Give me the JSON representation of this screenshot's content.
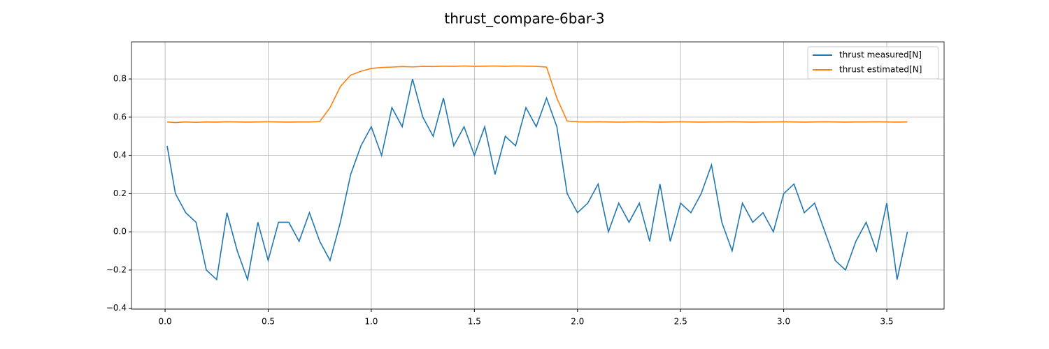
{
  "chart_data": {
    "type": "line",
    "title": "thrust_compare-6bar-3",
    "x": [
      0.01,
      0.05,
      0.1,
      0.15,
      0.2,
      0.25,
      0.3,
      0.35,
      0.4,
      0.45,
      0.5,
      0.55,
      0.6,
      0.65,
      0.7,
      0.75,
      0.8,
      0.85,
      0.9,
      0.95,
      1.0,
      1.05,
      1.1,
      1.15,
      1.2,
      1.25,
      1.3,
      1.35,
      1.4,
      1.45,
      1.5,
      1.55,
      1.6,
      1.65,
      1.7,
      1.75,
      1.8,
      1.85,
      1.9,
      1.95,
      2.0,
      2.05,
      2.1,
      2.15,
      2.2,
      2.25,
      2.3,
      2.35,
      2.4,
      2.45,
      2.5,
      2.55,
      2.6,
      2.65,
      2.7,
      2.75,
      2.8,
      2.85,
      2.9,
      2.95,
      3.0,
      3.05,
      3.1,
      3.15,
      3.2,
      3.25,
      3.3,
      3.35,
      3.4,
      3.45,
      3.5,
      3.55,
      3.6
    ],
    "series": [
      {
        "name": "thrust measured[N]",
        "color": "#1f77b4",
        "values": [
          0.45,
          0.2,
          0.1,
          0.05,
          -0.2,
          -0.25,
          0.1,
          -0.1,
          -0.25,
          0.05,
          -0.15,
          0.05,
          0.05,
          -0.05,
          0.1,
          -0.05,
          -0.15,
          0.05,
          0.3,
          0.45,
          0.55,
          0.4,
          0.65,
          0.55,
          0.8,
          0.6,
          0.5,
          0.7,
          0.45,
          0.55,
          0.4,
          0.55,
          0.3,
          0.5,
          0.45,
          0.65,
          0.55,
          0.7,
          0.55,
          0.2,
          0.1,
          0.15,
          0.25,
          0.0,
          0.15,
          0.05,
          0.15,
          -0.05,
          0.25,
          -0.05,
          0.15,
          0.1,
          0.2,
          0.35,
          0.05,
          -0.1,
          0.15,
          0.05,
          0.1,
          0.0,
          0.2,
          0.25,
          0.1,
          0.15,
          0.0,
          -0.15,
          -0.2,
          -0.05,
          0.05,
          -0.1,
          0.15,
          -0.25,
          0.0
        ]
      },
      {
        "name": "thrust estimated[N]",
        "color": "#ff7f0e",
        "values": [
          0.575,
          0.572,
          0.575,
          0.573,
          0.575,
          0.574,
          0.576,
          0.575,
          0.574,
          0.575,
          0.576,
          0.575,
          0.574,
          0.575,
          0.575,
          0.577,
          0.65,
          0.76,
          0.82,
          0.84,
          0.855,
          0.86,
          0.862,
          0.865,
          0.863,
          0.866,
          0.865,
          0.867,
          0.866,
          0.868,
          0.866,
          0.867,
          0.868,
          0.866,
          0.868,
          0.867,
          0.866,
          0.862,
          0.7,
          0.58,
          0.576,
          0.575,
          0.576,
          0.575,
          0.574,
          0.575,
          0.576,
          0.575,
          0.574,
          0.575,
          0.576,
          0.575,
          0.574,
          0.575,
          0.575,
          0.576,
          0.575,
          0.574,
          0.575,
          0.575,
          0.576,
          0.575,
          0.574,
          0.575,
          0.576,
          0.575,
          0.574,
          0.575,
          0.575,
          0.576,
          0.575,
          0.574,
          0.575
        ]
      }
    ],
    "xlim": [
      -0.163,
      3.778
    ],
    "ylim": [
      -0.405,
      0.994
    ],
    "xticks": [
      {
        "value": 0.0,
        "label": "0.0"
      },
      0.5,
      {
        "value": 1.0,
        "label": "1.0"
      },
      1.5,
      {
        "value": 2.0,
        "label": "2.0"
      },
      2.5,
      {
        "value": 3.0,
        "label": "3.0"
      },
      3.5
    ],
    "yticks": [
      {
        "value": -0.4,
        "label": "−0.4"
      },
      {
        "value": -0.2,
        "label": "−0.2"
      },
      {
        "value": 0.0,
        "label": "0.0"
      },
      0.2,
      0.4,
      0.6,
      0.8
    ],
    "grid": true,
    "legend": "upper right"
  }
}
